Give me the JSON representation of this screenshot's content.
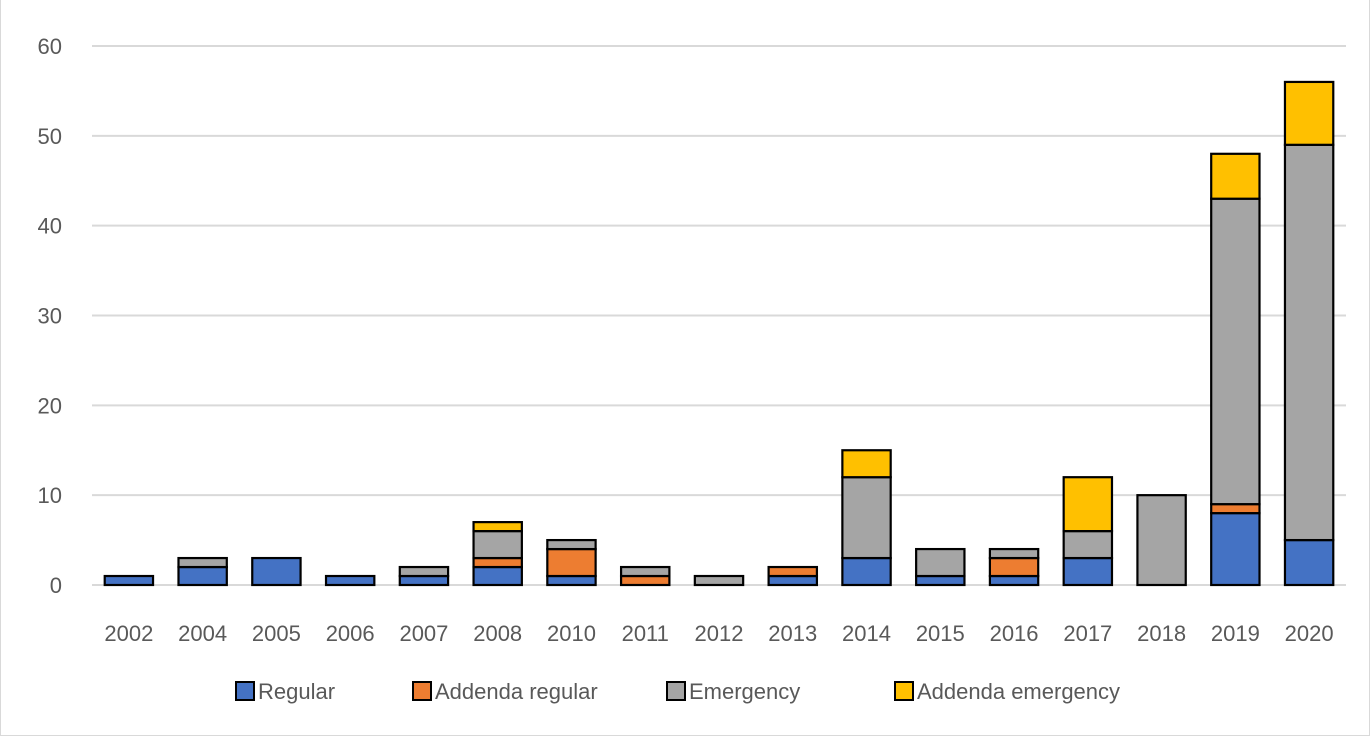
{
  "chart_data": {
    "type": "bar",
    "stacked": true,
    "categories": [
      "2002",
      "2004",
      "2005",
      "2006",
      "2007",
      "2008",
      "2010",
      "2011",
      "2012",
      "2013",
      "2014",
      "2015",
      "2016",
      "2017",
      "2018",
      "2019",
      "2020"
    ],
    "series": [
      {
        "name": "Regular",
        "color": "#4472c4",
        "values": [
          1,
          2,
          3,
          1,
          1,
          2,
          1,
          0,
          0,
          1,
          3,
          1,
          1,
          3,
          0,
          8,
          5
        ]
      },
      {
        "name": "Addenda regular",
        "color": "#ed7d31",
        "values": [
          0,
          0,
          0,
          0,
          0,
          1,
          3,
          1,
          0,
          1,
          0,
          0,
          2,
          0,
          0,
          1,
          0
        ]
      },
      {
        "name": "Emergency",
        "color": "#a5a5a5",
        "values": [
          0,
          1,
          0,
          0,
          1,
          3,
          1,
          1,
          1,
          0,
          9,
          3,
          1,
          3,
          10,
          34,
          44
        ]
      },
      {
        "name": "Addenda emergency",
        "color": "#ffc000",
        "values": [
          0,
          0,
          0,
          0,
          0,
          1,
          0,
          0,
          0,
          0,
          3,
          0,
          0,
          6,
          0,
          5,
          7
        ]
      }
    ],
    "ylim": [
      0,
      60
    ],
    "yticks": [
      0,
      10,
      20,
      30,
      40,
      50,
      60
    ],
    "grid": true,
    "legend_position": "bottom",
    "title": "",
    "xlabel": "",
    "ylabel": ""
  }
}
